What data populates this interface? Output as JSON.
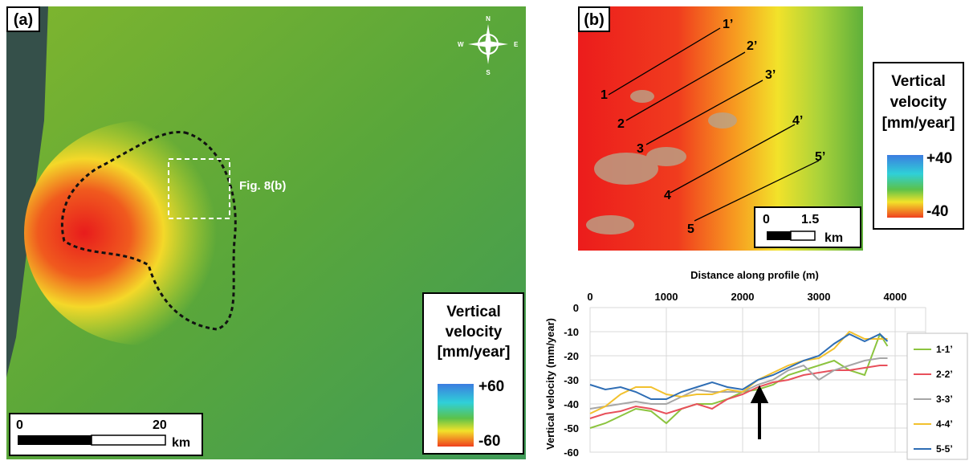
{
  "panel_a": {
    "label": "(a)",
    "annotation": "Fig. 8(b)",
    "compass": {
      "n": "N",
      "e": "E",
      "s": "S",
      "w": "W"
    },
    "legend": {
      "title": [
        "Vertical",
        "velocity",
        "[mm/year]"
      ],
      "max": "+60",
      "min": "-60"
    },
    "scale_bar": {
      "start": 0,
      "end": 20,
      "unit": "km"
    }
  },
  "panel_b": {
    "label": "(b)",
    "profiles": [
      [
        "1",
        "1’"
      ],
      [
        "2",
        "2’"
      ],
      [
        "3",
        "3’"
      ],
      [
        "4",
        "4’"
      ],
      [
        "5",
        "5’"
      ]
    ],
    "legend": {
      "title": [
        "Vertical",
        "velocity",
        "[mm/year]"
      ],
      "max": "+40",
      "min": "-40"
    },
    "scale_bar": {
      "start": 0,
      "end": 1.5,
      "unit": "km"
    }
  },
  "chart_data": {
    "type": "line",
    "x_label": "Distance along profile (m)",
    "y_label": "Vertical velocity (mm/year)",
    "x": [
      0,
      200,
      400,
      600,
      800,
      1000,
      1200,
      1400,
      1600,
      1800,
      2000,
      2200,
      2400,
      2600,
      2800,
      3000,
      3200,
      3400,
      3600,
      3800,
      3900
    ],
    "xlim": [
      0,
      4400
    ],
    "xticks": [
      0,
      1000,
      2000,
      3000,
      4000
    ],
    "ylim": [
      -60,
      0
    ],
    "yticks": [
      0,
      -10,
      -20,
      -30,
      -40,
      -50,
      -60
    ],
    "grid": true,
    "legend_position": "right",
    "series": [
      {
        "name": "1-1’",
        "color": "#8cc43f",
        "values": [
          -50,
          -48,
          -45,
          -42,
          -43,
          -48,
          -42,
          -40,
          -40,
          -38,
          -35,
          -34,
          -32,
          -28,
          -26,
          -24,
          -22,
          -26,
          -28,
          -11,
          -16
        ]
      },
      {
        "name": "2-2’",
        "color": "#e8505b",
        "values": [
          -46,
          -44,
          -43,
          -41,
          -42,
          -44,
          -42,
          -40,
          -42,
          -38,
          -36,
          -33,
          -31,
          -30,
          -28,
          -27,
          -26,
          -26,
          -25,
          -24,
          -24
        ]
      },
      {
        "name": "3-3’",
        "color": "#a6a6a6",
        "values": [
          -42,
          -41,
          -40,
          -39,
          -40,
          -40,
          -37,
          -34,
          -35,
          -35,
          -35,
          -32,
          -30,
          -26,
          -24,
          -30,
          -26,
          -24,
          -22,
          -21,
          -21
        ]
      },
      {
        "name": "4-4’",
        "color": "#f2c12e",
        "values": [
          -44,
          -41,
          -36,
          -33,
          -33,
          -36,
          -37,
          -36,
          -36,
          -34,
          -35,
          -30,
          -27,
          -24,
          -22,
          -21,
          -17,
          -10,
          -13,
          -13,
          -13
        ]
      },
      {
        "name": "5-5’",
        "color": "#2e6db4",
        "values": [
          -32,
          -34,
          -33,
          -35,
          -38,
          -38,
          -35,
          -33,
          -31,
          -33,
          -34,
          -30,
          -28,
          -25,
          -22,
          -20,
          -15,
          -11,
          -14,
          -11,
          -14
        ]
      }
    ]
  }
}
